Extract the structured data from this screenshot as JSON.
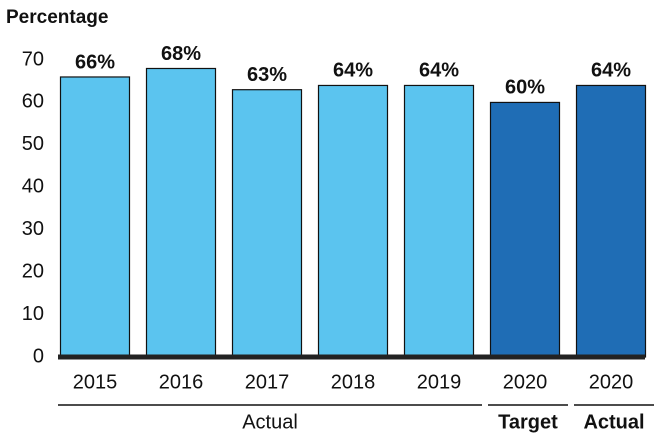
{
  "chart_data": {
    "type": "bar",
    "y_label": "Percentage",
    "groups": [
      {
        "label": "Actual",
        "bold": false,
        "categories": [
          "2015",
          "2016",
          "2017",
          "2018",
          "2019"
        ]
      },
      {
        "label": "Target",
        "bold": true,
        "categories": [
          "2020"
        ]
      },
      {
        "label": "Actual",
        "bold": true,
        "categories": [
          "2020"
        ]
      }
    ],
    "values": [
      66,
      68,
      63,
      64,
      64,
      60,
      64
    ],
    "value_labels": [
      "66%",
      "68%",
      "63%",
      "64%",
      "64%",
      "60%",
      "64%"
    ],
    "colors": [
      "#5bc4ef",
      "#5bc4ef",
      "#5bc4ef",
      "#5bc4ef",
      "#5bc4ef",
      "#1f6db5",
      "#1f6db5"
    ],
    "ylim": [
      0,
      70
    ],
    "yticks": [
      0,
      10,
      20,
      30,
      40,
      50,
      60,
      70
    ],
    "grid": false
  }
}
